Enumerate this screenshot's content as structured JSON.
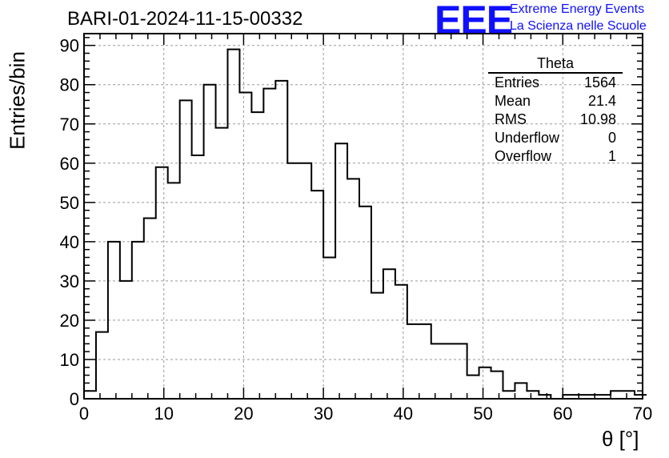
{
  "chart_data": {
    "type": "bar",
    "title": "BARI-01-2024-11-15-00332",
    "xlabel": "θ [°]",
    "ylabel": "Entries/bin",
    "xlim": [
      0,
      70
    ],
    "ylim": [
      0,
      93
    ],
    "grid": true,
    "bin_width": 1.5,
    "bin_start": 0,
    "values": [
      2,
      17,
      40,
      30,
      40,
      46,
      59,
      55,
      76,
      62,
      80,
      69,
      89,
      78,
      73,
      79,
      81,
      60,
      60,
      53,
      36,
      65,
      56,
      49,
      27,
      33,
      29,
      19,
      19,
      14,
      14,
      14,
      6,
      8,
      7,
      2,
      4,
      2,
      1,
      0,
      1,
      1,
      1,
      1,
      2,
      2,
      1
    ],
    "x_ticks": [
      "0",
      "10",
      "20",
      "30",
      "40",
      "50",
      "60",
      "70"
    ],
    "y_ticks": [
      "0",
      "10",
      "20",
      "30",
      "40",
      "50",
      "60",
      "70",
      "80",
      "90"
    ],
    "stats": {
      "title": "Theta",
      "rows": [
        {
          "label": "Entries",
          "value": "1564"
        },
        {
          "label": "Mean",
          "value": "21.4"
        },
        {
          "label": "RMS",
          "value": "10.98"
        },
        {
          "label": "Underflow",
          "value": "0"
        },
        {
          "label": "Overflow",
          "value": "1"
        }
      ]
    }
  },
  "logo": {
    "letters": "EEE",
    "line1": "Extreme Energy Events",
    "line2": "La Scienza nelle Scuole"
  },
  "colors": {
    "histogram": "#000000",
    "grid": "#999999",
    "logo": "#1010ff"
  }
}
